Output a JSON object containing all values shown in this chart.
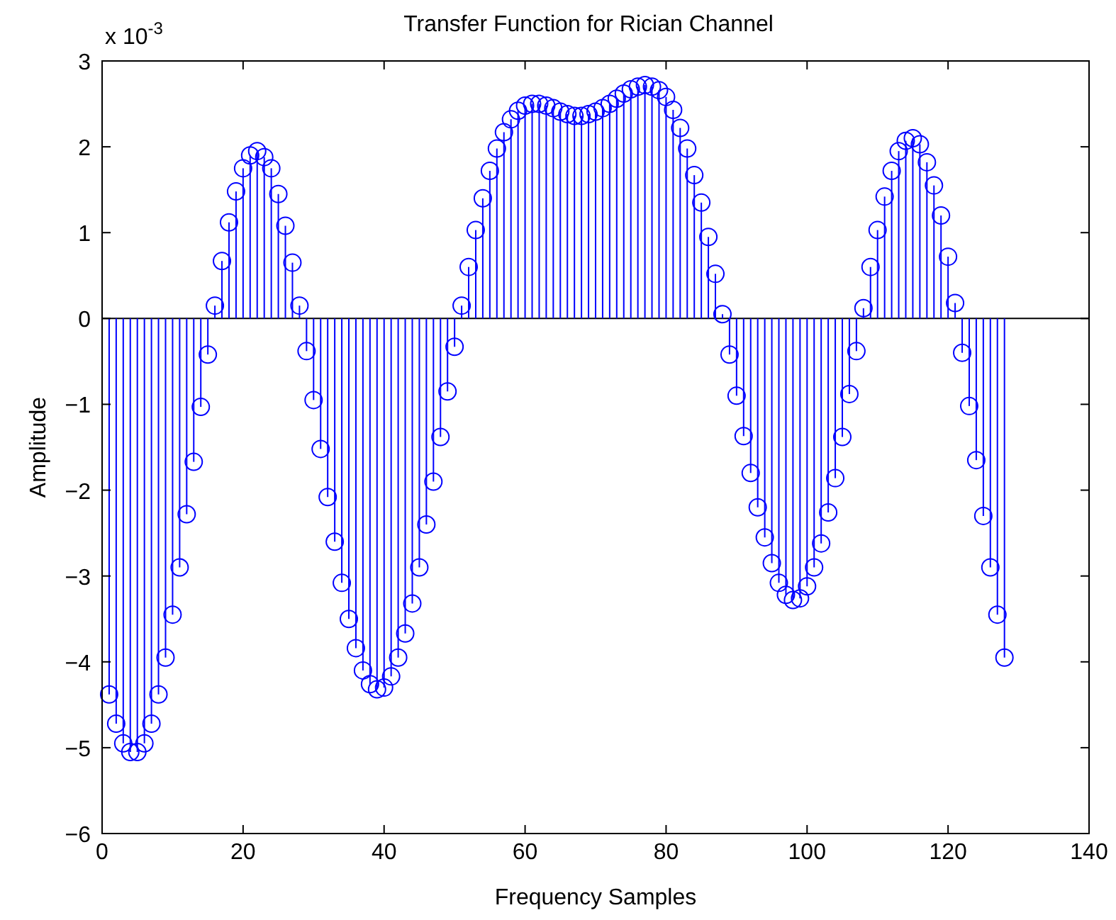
{
  "chart_data": {
    "type": "lollipop",
    "title": "Transfer Function for Rician Channel",
    "xlabel": "Frequency Samples",
    "ylabel": "Amplitude",
    "annotations": [
      "x 10$^{-3}$"
    ],
    "x": [
      1,
      2,
      3,
      4,
      5,
      6,
      7,
      8,
      9,
      10,
      11,
      12,
      13,
      14,
      15,
      16,
      17,
      18,
      19,
      20,
      21,
      22,
      23,
      24,
      25,
      26,
      27,
      28,
      29,
      30,
      31,
      32,
      33,
      34,
      35,
      36,
      37,
      38,
      39,
      40,
      41,
      42,
      43,
      44,
      45,
      46,
      47,
      48,
      49,
      50,
      51,
      52,
      53,
      54,
      55,
      56,
      57,
      58,
      59,
      60,
      61,
      62,
      63,
      64,
      65,
      66,
      67,
      68,
      69,
      70,
      71,
      72,
      73,
      74,
      75,
      76,
      77,
      78,
      79,
      80,
      81,
      82,
      83,
      84,
      85,
      86,
      87,
      88,
      89,
      90,
      91,
      92,
      93,
      94,
      95,
      96,
      97,
      98,
      99,
      100,
      101,
      102,
      103,
      104,
      105,
      106,
      107,
      108,
      109,
      110,
      111,
      112,
      113,
      114,
      115,
      116,
      117,
      118,
      119,
      120,
      121,
      122,
      123,
      124,
      125,
      126,
      127,
      128
    ],
    "series": [
      {
        "color": "#0000ff",
        "values": [
          -4.38,
          -4.72,
          -4.95,
          -5.05,
          -5.05,
          -4.95,
          -4.72,
          -4.38,
          -3.95,
          -3.45,
          -2.9,
          -2.28,
          -1.67,
          -1.03,
          -0.42,
          0.15,
          0.67,
          1.12,
          1.48,
          1.75,
          1.9,
          1.95,
          1.88,
          1.75,
          1.45,
          1.08,
          0.65,
          0.15,
          -0.38,
          -0.95,
          -1.52,
          -2.08,
          -2.6,
          -3.08,
          -3.5,
          -3.84,
          -4.1,
          -4.26,
          -4.32,
          -4.3,
          -4.17,
          -3.95,
          -3.67,
          -3.32,
          -2.9,
          -2.4,
          -1.9,
          -1.38,
          -0.85,
          -0.33,
          0.15,
          0.6,
          1.03,
          1.4,
          1.72,
          1.98,
          2.17,
          2.32,
          2.42,
          2.48,
          2.5,
          2.5,
          2.48,
          2.45,
          2.41,
          2.38,
          2.36,
          2.36,
          2.38,
          2.41,
          2.45,
          2.5,
          2.56,
          2.62,
          2.67,
          2.7,
          2.72,
          2.7,
          2.66,
          2.58,
          2.43,
          2.22,
          1.98,
          1.67,
          1.35,
          0.95,
          0.52,
          0.05,
          -0.42,
          -0.9,
          -1.37,
          -1.8,
          -2.2,
          -2.55,
          -2.85,
          -3.08,
          -3.22,
          -3.28,
          -3.26,
          -3.12,
          -2.9,
          -2.62,
          -2.26,
          -1.86,
          -1.38,
          -0.88,
          -0.38,
          0.12,
          0.6,
          1.03,
          1.42,
          1.72,
          1.95,
          2.07,
          2.1,
          2.03,
          1.82,
          1.55,
          1.2,
          0.72,
          0.18,
          -0.4,
          -1.02,
          -1.65,
          -2.3,
          -2.9,
          -3.45,
          -3.95
        ]
      }
    ],
    "xlim": [
      0,
      140
    ],
    "xticks": [
      0,
      20,
      40,
      60,
      80,
      100,
      120,
      140
    ],
    "ylim": [
      -6,
      3
    ],
    "yticks": [
      -6,
      -5,
      -4,
      -3,
      -2,
      -1,
      0,
      1,
      2,
      3
    ],
    "marker": "circle"
  }
}
